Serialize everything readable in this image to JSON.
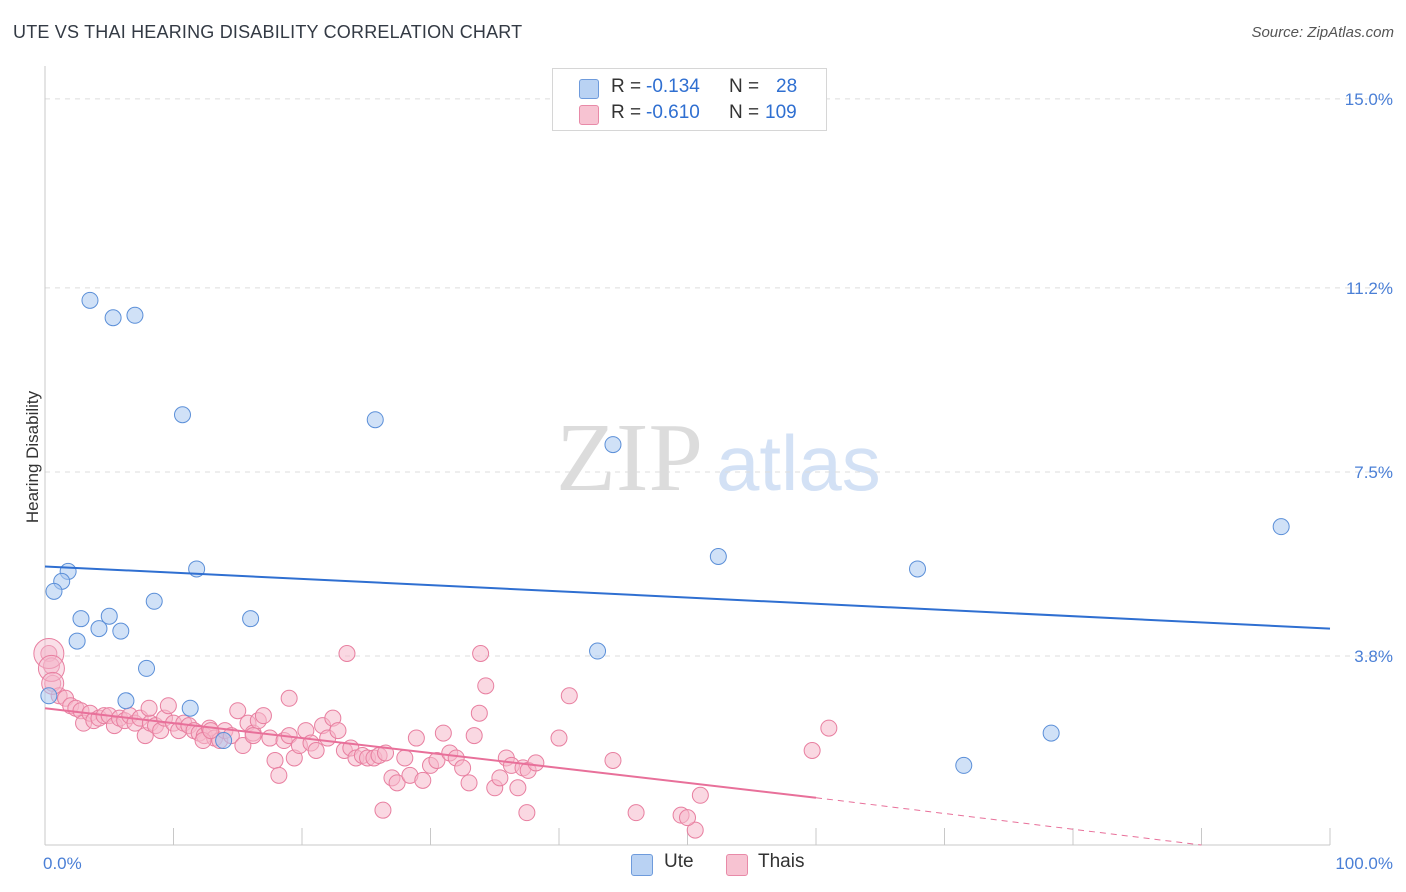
{
  "title": "UTE VS THAI HEARING DISABILITY CORRELATION CHART",
  "source": "Source: ZipAtlas.com",
  "watermark": {
    "zip": "ZIP",
    "atlas": "atlas"
  },
  "legend": {
    "ute": {
      "r_label": "R =",
      "r_value": "-0.134",
      "n_label": "N =",
      "n_value": "28"
    },
    "thai": {
      "r_label": "R =",
      "r_value": "-0.610",
      "n_label": "N =",
      "n_value": "109"
    }
  },
  "bottom_legend": {
    "ute": "Ute",
    "thai": "Thais"
  },
  "colors": {
    "ute_fill": "#a9c8f0",
    "ute_stroke": "#5b8fd8",
    "ute_line": "#2f6fd1",
    "thai_fill": "#f5b8cb",
    "thai_stroke": "#e87fa0",
    "thai_line": "#e8709a",
    "tick_text": "#4a7fd6",
    "grid": "#dddddd"
  },
  "chart_data": {
    "type": "scatter",
    "title": "UTE VS THAI HEARING DISABILITY CORRELATION CHART",
    "xlabel": "",
    "ylabel": "Hearing Disability",
    "xlim": [
      0,
      100
    ],
    "ylim": [
      0,
      15.4
    ],
    "y_ticks": [
      {
        "value": 3.8,
        "label": "3.8%"
      },
      {
        "value": 7.5,
        "label": "7.5%"
      },
      {
        "value": 11.2,
        "label": "11.2%"
      },
      {
        "value": 15.0,
        "label": "15.0%"
      }
    ],
    "x_tick_labels": {
      "min": "0.0%",
      "max": "100.0%"
    },
    "series": [
      {
        "name": "Ute",
        "r": -0.134,
        "n": 28,
        "trend": {
          "x0": 0,
          "y0": 5.6,
          "x1": 100,
          "y1": 4.35
        },
        "points": [
          [
            3.5,
            10.95
          ],
          [
            5.3,
            10.6
          ],
          [
            7.0,
            10.65
          ],
          [
            10.7,
            8.65
          ],
          [
            25.7,
            8.55
          ],
          [
            44.2,
            8.05
          ],
          [
            96.2,
            6.4
          ],
          [
            52.4,
            5.8
          ],
          [
            67.9,
            5.55
          ],
          [
            11.8,
            5.55
          ],
          [
            1.8,
            5.5
          ],
          [
            1.3,
            5.3
          ],
          [
            0.7,
            5.1
          ],
          [
            8.5,
            4.9
          ],
          [
            2.8,
            4.55
          ],
          [
            5.0,
            4.6
          ],
          [
            16.0,
            4.55
          ],
          [
            4.2,
            4.35
          ],
          [
            5.9,
            4.3
          ],
          [
            2.5,
            4.1
          ],
          [
            43.0,
            3.9
          ],
          [
            7.9,
            3.55
          ],
          [
            6.3,
            2.9
          ],
          [
            11.3,
            2.75
          ],
          [
            78.3,
            2.25
          ],
          [
            13.9,
            2.1
          ],
          [
            71.5,
            1.6
          ],
          [
            0.3,
            3.0
          ]
        ]
      },
      {
        "name": "Thais",
        "r": -0.61,
        "n": 109,
        "trend": {
          "x0": 0,
          "y0": 2.75,
          "x1": 60,
          "y1": 0.95,
          "dash_x1": 90,
          "dash_y1": 0.0
        },
        "points": [
          [
            0.3,
            3.85
          ],
          [
            0.5,
            3.6
          ],
          [
            0.6,
            3.25
          ],
          [
            1.1,
            3.0
          ],
          [
            1.6,
            2.95
          ],
          [
            2.0,
            2.8
          ],
          [
            2.4,
            2.75
          ],
          [
            2.8,
            2.7
          ],
          [
            3.0,
            2.45
          ],
          [
            3.5,
            2.65
          ],
          [
            3.8,
            2.5
          ],
          [
            4.2,
            2.55
          ],
          [
            4.6,
            2.6
          ],
          [
            5.0,
            2.6
          ],
          [
            5.4,
            2.4
          ],
          [
            5.8,
            2.55
          ],
          [
            6.2,
            2.5
          ],
          [
            6.6,
            2.6
          ],
          [
            7.0,
            2.45
          ],
          [
            7.4,
            2.55
          ],
          [
            7.8,
            2.2
          ],
          [
            8.2,
            2.45
          ],
          [
            8.6,
            2.4
          ],
          [
            9.0,
            2.3
          ],
          [
            9.3,
            2.55
          ],
          [
            9.6,
            2.8
          ],
          [
            10.0,
            2.45
          ],
          [
            10.4,
            2.3
          ],
          [
            10.8,
            2.45
          ],
          [
            11.2,
            2.4
          ],
          [
            11.6,
            2.3
          ],
          [
            12.0,
            2.25
          ],
          [
            12.4,
            2.2
          ],
          [
            12.8,
            2.35
          ],
          [
            13.2,
            2.15
          ],
          [
            13.6,
            2.1
          ],
          [
            14.0,
            2.3
          ],
          [
            14.5,
            2.2
          ],
          [
            15.0,
            2.7
          ],
          [
            15.4,
            2.0
          ],
          [
            15.8,
            2.45
          ],
          [
            16.2,
            2.25
          ],
          [
            16.6,
            2.5
          ],
          [
            17.0,
            2.6
          ],
          [
            17.5,
            2.15
          ],
          [
            17.9,
            1.7
          ],
          [
            18.2,
            1.4
          ],
          [
            18.6,
            2.1
          ],
          [
            19.0,
            2.2
          ],
          [
            19.4,
            1.75
          ],
          [
            19.8,
            2.0
          ],
          [
            20.3,
            2.3
          ],
          [
            20.7,
            2.05
          ],
          [
            21.1,
            1.9
          ],
          [
            21.6,
            2.4
          ],
          [
            22.0,
            2.15
          ],
          [
            22.4,
            2.55
          ],
          [
            22.8,
            2.3
          ],
          [
            23.3,
            1.9
          ],
          [
            23.8,
            1.95
          ],
          [
            24.2,
            1.75
          ],
          [
            24.7,
            1.8
          ],
          [
            25.1,
            1.75
          ],
          [
            25.6,
            1.75
          ],
          [
            26.0,
            1.8
          ],
          [
            26.5,
            1.85
          ],
          [
            27.0,
            1.35
          ],
          [
            27.4,
            1.25
          ],
          [
            28.0,
            1.75
          ],
          [
            28.4,
            1.4
          ],
          [
            28.9,
            2.15
          ],
          [
            29.4,
            1.3
          ],
          [
            30.0,
            1.6
          ],
          [
            30.5,
            1.7
          ],
          [
            31.0,
            2.25
          ],
          [
            31.5,
            1.85
          ],
          [
            32.0,
            1.75
          ],
          [
            32.5,
            1.55
          ],
          [
            33.0,
            1.25
          ],
          [
            33.4,
            2.2
          ],
          [
            33.8,
            2.65
          ],
          [
            34.3,
            3.2
          ],
          [
            35.0,
            1.15
          ],
          [
            35.4,
            1.35
          ],
          [
            35.9,
            1.75
          ],
          [
            36.3,
            1.6
          ],
          [
            36.8,
            1.15
          ],
          [
            37.2,
            1.55
          ],
          [
            37.6,
            1.5
          ],
          [
            38.2,
            1.65
          ],
          [
            40.0,
            2.15
          ],
          [
            40.8,
            3.0
          ],
          [
            46.0,
            0.65
          ],
          [
            49.5,
            0.6
          ],
          [
            50.6,
            0.3
          ],
          [
            50.0,
            0.55
          ],
          [
            51.0,
            1.0
          ],
          [
            59.7,
            1.9
          ],
          [
            61.0,
            2.35
          ],
          [
            37.5,
            0.65
          ],
          [
            26.3,
            0.7
          ],
          [
            19.0,
            2.95
          ],
          [
            23.5,
            3.85
          ],
          [
            33.9,
            3.85
          ],
          [
            16.2,
            2.2
          ],
          [
            12.3,
            2.1
          ],
          [
            44.2,
            1.7
          ],
          [
            12.9,
            2.3
          ],
          [
            8.1,
            2.75
          ]
        ]
      }
    ]
  }
}
